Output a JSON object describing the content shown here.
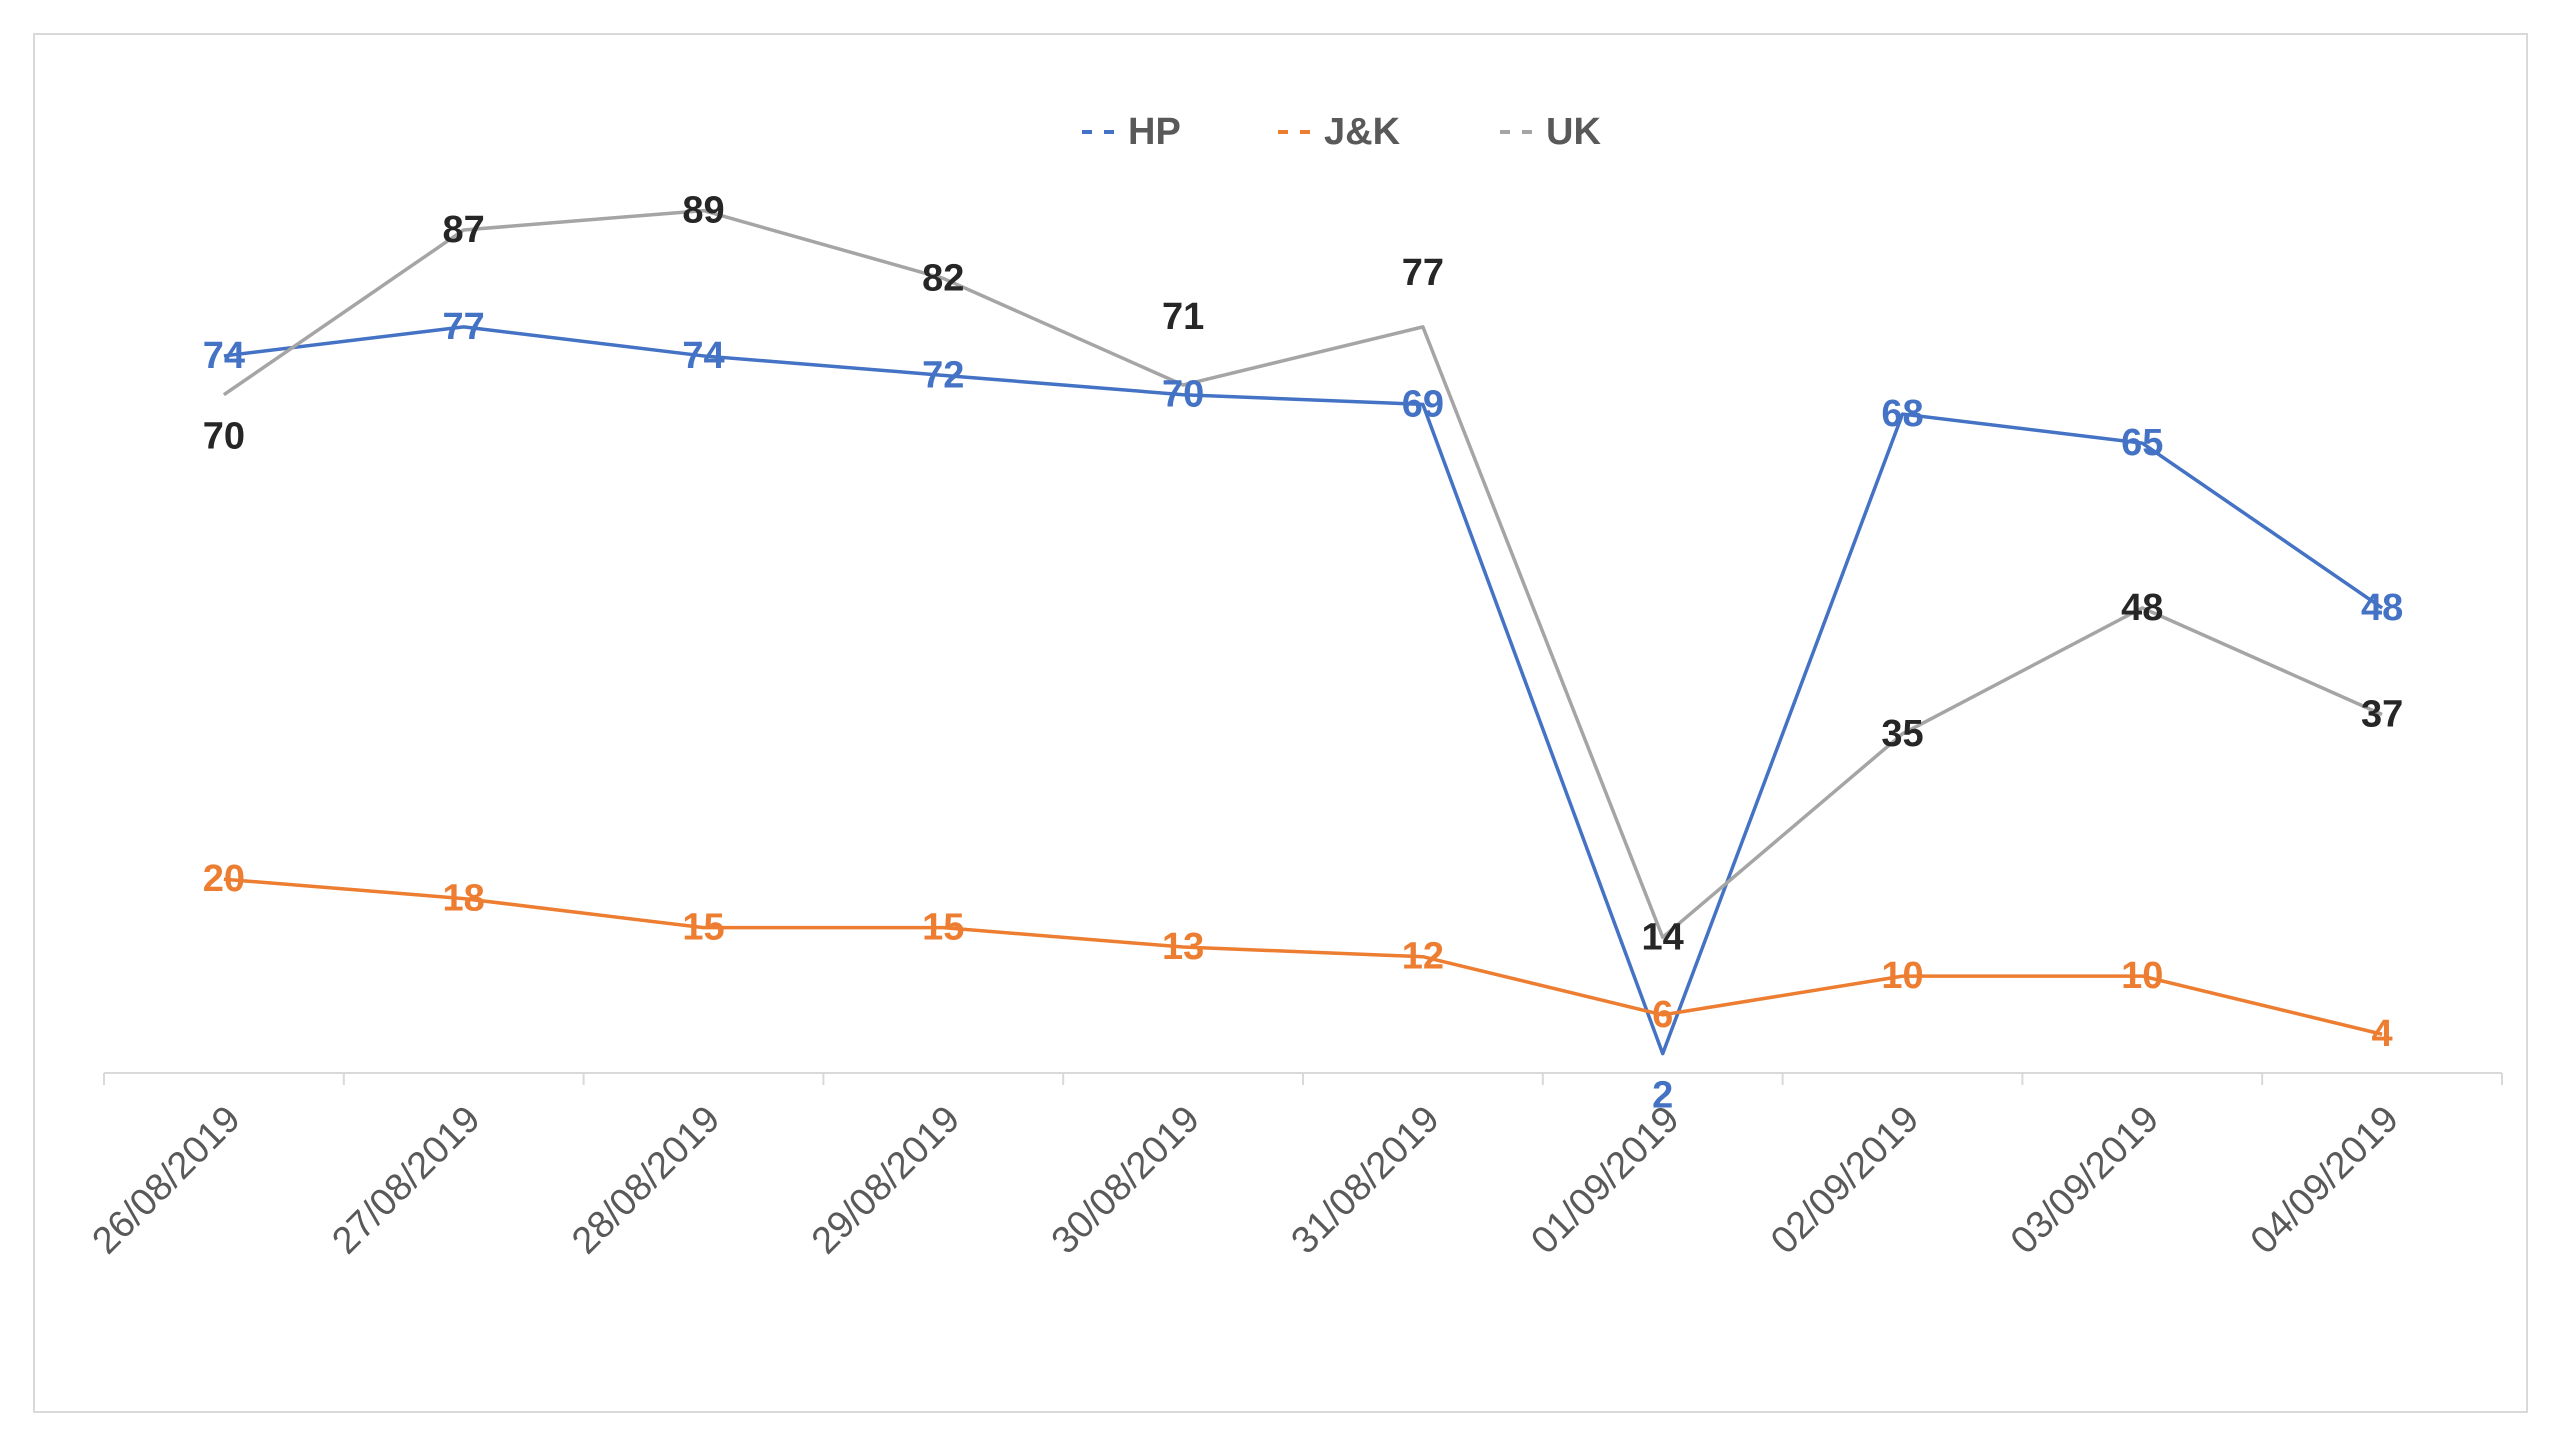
{
  "chart_data": {
    "type": "line",
    "categories": [
      "26/08/2019",
      "27/08/2019",
      "28/08/2019",
      "29/08/2019",
      "30/08/2019",
      "31/08/2019",
      "01/09/2019",
      "02/09/2019",
      "03/09/2019",
      "04/09/2019"
    ],
    "series": [
      {
        "name": "HP",
        "color": "#4472c4",
        "label_color": "#4472c4",
        "values": [
          74,
          77,
          74,
          72,
          70,
          69,
          2,
          68,
          65,
          48
        ]
      },
      {
        "name": "J&K",
        "color": "#ed7d31",
        "label_color": "#ed7d31",
        "values": [
          20,
          18,
          15,
          15,
          13,
          12,
          6,
          10,
          10,
          4
        ]
      },
      {
        "name": "UK",
        "color": "#a5a5a5",
        "label_color": "#262626",
        "values": [
          70,
          87,
          89,
          82,
          71,
          77,
          14,
          35,
          48,
          37
        ]
      }
    ],
    "legend_position": "top-center",
    "ylim": [
      0,
      100
    ],
    "grid": false,
    "title": "",
    "xlabel": "",
    "ylabel": ""
  }
}
